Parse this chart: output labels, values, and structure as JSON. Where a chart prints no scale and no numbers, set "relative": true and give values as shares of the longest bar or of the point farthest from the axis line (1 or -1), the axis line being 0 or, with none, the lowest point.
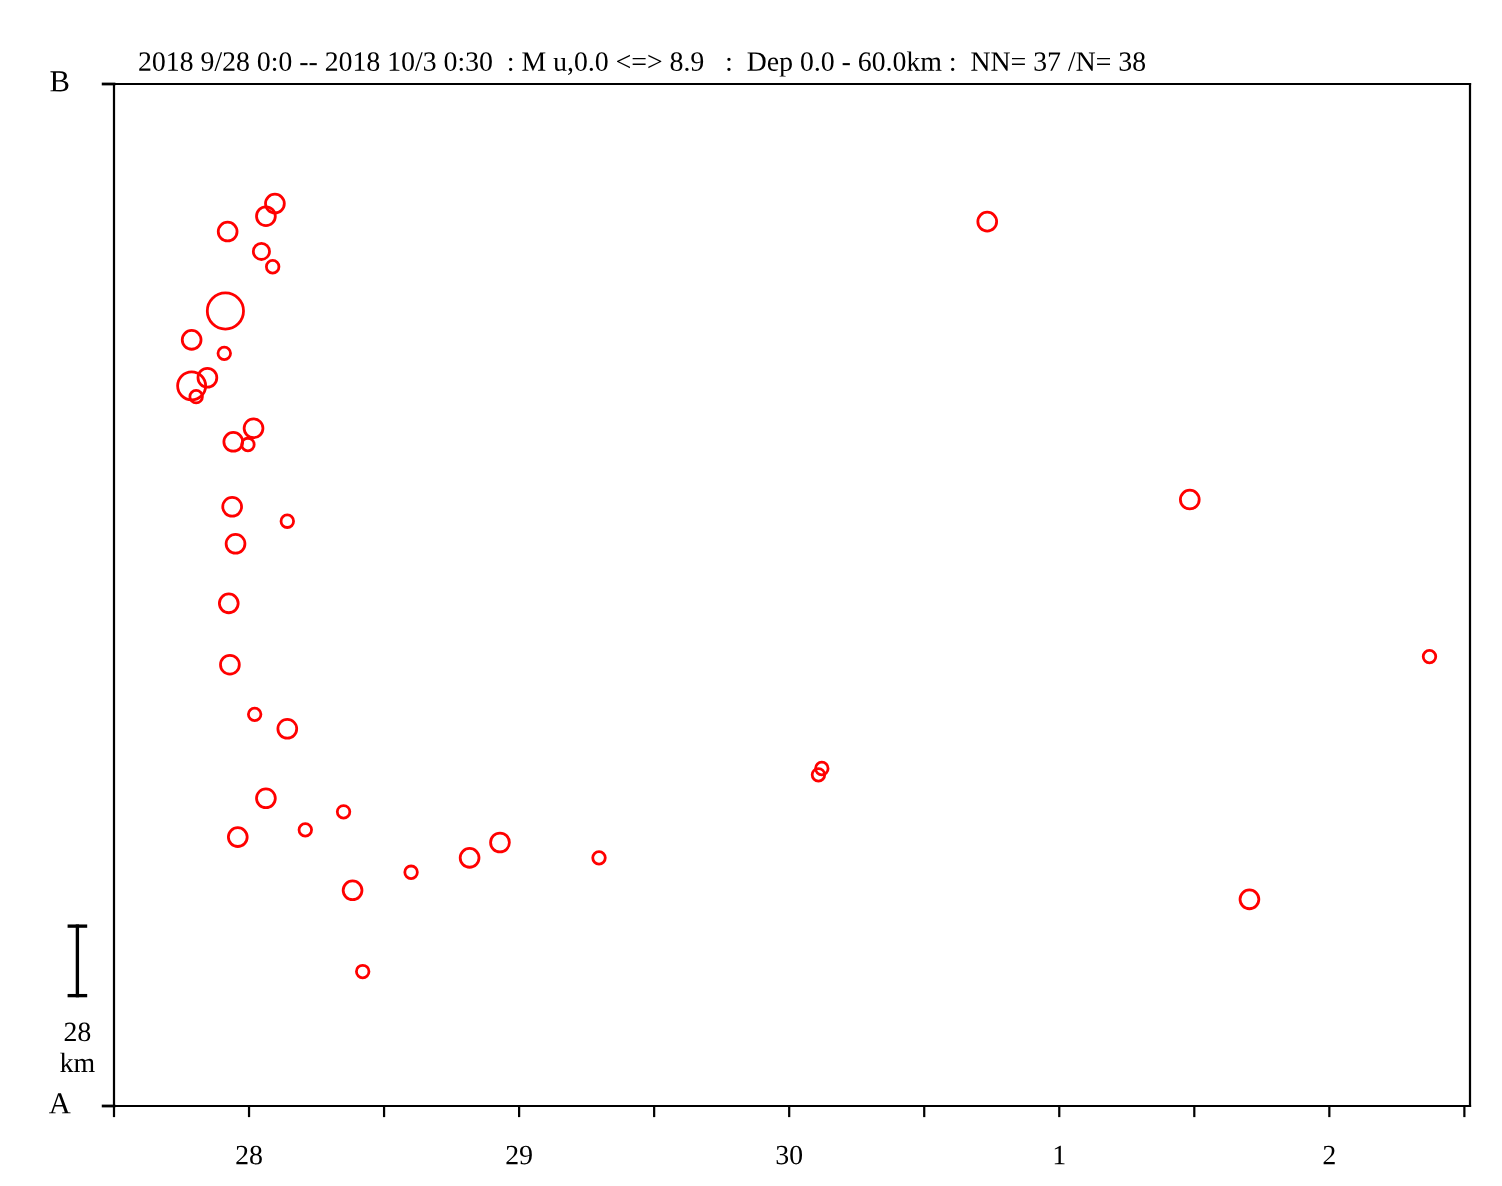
{
  "chart_data": {
    "type": "bubble",
    "title": "2018 9/28 0:0 -- 2018 10/3 0:30  : M u,0.0 <=> 8.9   :  Dep 0.0 - 60.0km :  NN= 37 /N= 38",
    "x": [
      "2018-09-28T14:18",
      "2018-09-28T13:30",
      "2018-09-28T10:06",
      "2018-09-28T13:06",
      "2018-09-28T14:06",
      "2018-09-28T09:54",
      "2018-09-28T06:54",
      "2018-09-28T09:48",
      "2018-09-28T08:18",
      "2018-09-28T06:54",
      "2018-09-28T07:18",
      "2018-09-28T12:24",
      "2018-09-28T10:36",
      "2018-09-28T11:54",
      "2018-09-28T10:30",
      "2018-09-28T15:24",
      "2018-09-28T10:48",
      "2018-09-28T10:12",
      "2018-09-28T10:18",
      "2018-09-28T12:30",
      "2018-09-28T15:24",
      "2018-09-28T13:30",
      "2018-09-28T20:24",
      "2018-09-28T11:00",
      "2018-09-28T17:00",
      "2018-09-29T10:18",
      "2018-09-29T07:36",
      "2018-09-29T02:24",
      "2018-09-29T19:06",
      "2018-09-28T21:12",
      "2018-09-28T22:06",
      "2018-10-01T05:36",
      "2018-10-01T23:36",
      "2018-10-02T20:54",
      "2018-09-30T14:36",
      "2018-09-30T14:54",
      "2018-10-02T04:54"
    ],
    "series": [
      {
        "color": "#ff0000",
        "values": [
          1.0,
          0.986,
          0.969,
          0.947,
          0.93,
          0.881,
          0.849,
          0.834,
          0.807,
          0.798,
          0.786,
          0.751,
          0.736,
          0.733,
          0.664,
          0.648,
          0.623,
          0.557,
          0.489,
          0.434,
          0.418,
          0.341,
          0.326,
          0.298,
          0.306,
          0.292,
          0.275,
          0.259,
          0.275,
          0.239,
          0.149,
          0.98,
          0.672,
          0.498,
          0.367,
          0.374,
          0.229
        ],
        "sizes": [
          0.27,
          0.27,
          0.27,
          0.2,
          0.12,
          1,
          0.27,
          0.12,
          0.27,
          0.6,
          0.12,
          0.27,
          0.27,
          0.12,
          0.27,
          0.12,
          0.27,
          0.27,
          0.27,
          0.12,
          0.27,
          0.27,
          0.12,
          0.27,
          0.12,
          0.27,
          0.27,
          0.12,
          0.12,
          0.27,
          0.12,
          0.27,
          0.27,
          0.12,
          0.12,
          0.12,
          0.27
        ]
      }
    ],
    "relative": true,
    "xlim": [
      "2018-09-28T00:00",
      "2018-10-03T00:30"
    ],
    "xticks": [
      {
        "value": "2018-09-28T00:00",
        "label": null
      },
      {
        "value": "2018-09-28T12:00",
        "label": "28"
      },
      {
        "value": "2018-09-29T00:00",
        "label": null
      },
      {
        "value": "2018-09-29T12:00",
        "label": "29"
      },
      {
        "value": "2018-09-30T00:00",
        "label": null
      },
      {
        "value": "2018-09-30T12:00",
        "label": "30"
      },
      {
        "value": "2018-10-01T00:00",
        "label": null
      },
      {
        "value": "2018-10-01T12:00",
        "label": "1"
      },
      {
        "value": "2018-10-02T00:00",
        "label": null
      },
      {
        "value": "2018-10-02T12:00",
        "label": "2"
      },
      {
        "value": "2018-10-03T00:00",
        "label": null
      }
    ],
    "annotations": [
      "A",
      "B",
      "28\nkm"
    ],
    "grid": false,
    "legend": false,
    "marker": "circle"
  }
}
